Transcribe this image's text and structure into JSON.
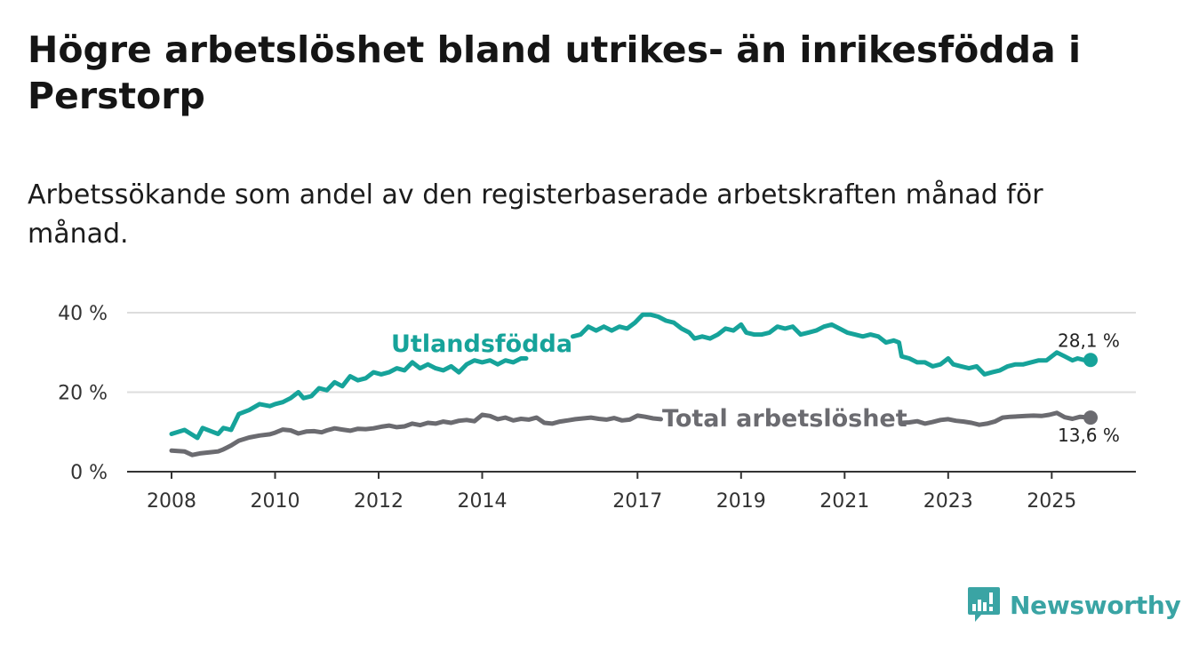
{
  "header": {
    "title": "Högre arbetslöshet bland utrikes- än inrikesfödda i Perstorp",
    "subtitle": "Arbetssökande som andel av den registerbaserade arbetskraften månad för månad."
  },
  "brand": {
    "name": "Newsworthy",
    "color": "#3aa4a4",
    "icon": "newsworthy-logo-icon"
  },
  "chart_data": {
    "type": "line",
    "title": "Högre arbetslöshet bland utrikes- än inrikesfödda i Perstorp",
    "subtitle": "Arbetssökande som andel av den registerbaserade arbetskraften månad för månad.",
    "xlabel": "",
    "ylabel": "",
    "xlim": [
      2008,
      2025.75
    ],
    "ylim": [
      0,
      40
    ],
    "x_ticks": [
      2008,
      2010,
      2012,
      2014,
      2017,
      2019,
      2021,
      2023,
      2025
    ],
    "x_tick_labels": [
      "2008",
      "2010",
      "2012",
      "2014",
      "2017",
      "2019",
      "2021",
      "2023",
      "2025"
    ],
    "y_ticks": [
      0,
      20,
      40
    ],
    "y_tick_labels": [
      "0 %",
      "20 %",
      "40 %"
    ],
    "grid": "horizontal",
    "series": [
      {
        "name": "Utlandsfödda",
        "color": "#16a39a",
        "end_label": "28,1 %",
        "segments": [
          [
            [
              2008.0,
              9.5
            ],
            [
              2008.25,
              10.5
            ],
            [
              2008.5,
              8.5
            ],
            [
              2008.6,
              11
            ],
            [
              2008.8,
              10
            ],
            [
              2008.9,
              9.5
            ],
            [
              2009.0,
              11
            ],
            [
              2009.15,
              10.5
            ],
            [
              2009.3,
              14.5
            ],
            [
              2009.5,
              15.5
            ],
            [
              2009.7,
              17
            ],
            [
              2009.9,
              16.5
            ],
            [
              2010.0,
              17
            ],
            [
              2010.15,
              17.5
            ],
            [
              2010.3,
              18.5
            ],
            [
              2010.45,
              20
            ],
            [
              2010.55,
              18.5
            ],
            [
              2010.7,
              19
            ],
            [
              2010.85,
              21
            ],
            [
              2011.0,
              20.5
            ],
            [
              2011.15,
              22.5
            ],
            [
              2011.3,
              21.5
            ],
            [
              2011.45,
              24
            ],
            [
              2011.6,
              23
            ],
            [
              2011.75,
              23.5
            ],
            [
              2011.9,
              25
            ],
            [
              2012.05,
              24.5
            ],
            [
              2012.2,
              25
            ],
            [
              2012.35,
              26
            ],
            [
              2012.5,
              25.5
            ],
            [
              2012.65,
              27.5
            ],
            [
              2012.8,
              26
            ],
            [
              2012.95,
              27
            ],
            [
              2013.1,
              26
            ],
            [
              2013.25,
              25.5
            ],
            [
              2013.4,
              26.5
            ],
            [
              2013.55,
              25
            ],
            [
              2013.7,
              27
            ],
            [
              2013.85,
              28
            ],
            [
              2014.0,
              27.5
            ],
            [
              2014.15,
              28
            ],
            [
              2014.3,
              27
            ],
            [
              2014.45,
              28
            ],
            [
              2014.6,
              27.5
            ],
            [
              2014.75,
              28.5
            ],
            [
              2014.85,
              28.5
            ]
          ],
          [
            [
              2015.75,
              34
            ],
            [
              2015.9,
              34.5
            ],
            [
              2016.05,
              36.5
            ],
            [
              2016.2,
              35.5
            ],
            [
              2016.35,
              36.5
            ],
            [
              2016.5,
              35.5
            ],
            [
              2016.65,
              36.5
            ],
            [
              2016.8,
              36
            ],
            [
              2016.95,
              37.5
            ],
            [
              2017.1,
              39.5
            ],
            [
              2017.25,
              39.5
            ],
            [
              2017.4,
              39
            ],
            [
              2017.55,
              38
            ],
            [
              2017.7,
              37.5
            ],
            [
              2017.85,
              36
            ],
            [
              2018.0,
              35
            ],
            [
              2018.1,
              33.5
            ],
            [
              2018.25,
              34
            ],
            [
              2018.4,
              33.5
            ],
            [
              2018.55,
              34.5
            ],
            [
              2018.7,
              36
            ],
            [
              2018.85,
              35.5
            ],
            [
              2019.0,
              37
            ],
            [
              2019.1,
              35
            ],
            [
              2019.25,
              34.5
            ],
            [
              2019.4,
              34.5
            ],
            [
              2019.55,
              35
            ],
            [
              2019.7,
              36.5
            ],
            [
              2019.85,
              36
            ],
            [
              2020.0,
              36.5
            ],
            [
              2020.15,
              34.5
            ],
            [
              2020.3,
              35
            ],
            [
              2020.45,
              35.5
            ],
            [
              2020.6,
              36.5
            ],
            [
              2020.75,
              37
            ],
            [
              2020.9,
              36
            ],
            [
              2021.05,
              35
            ],
            [
              2021.2,
              34.5
            ],
            [
              2021.35,
              34
            ],
            [
              2021.5,
              34.5
            ],
            [
              2021.65,
              34
            ],
            [
              2021.8,
              32.5
            ],
            [
              2021.95,
              33
            ],
            [
              2022.05,
              32.5
            ],
            [
              2022.1,
              29
            ],
            [
              2022.25,
              28.5
            ],
            [
              2022.4,
              27.5
            ],
            [
              2022.55,
              27.5
            ],
            [
              2022.7,
              26.5
            ],
            [
              2022.85,
              27
            ],
            [
              2023.0,
              28.5
            ],
            [
              2023.1,
              27
            ],
            [
              2023.25,
              26.5
            ],
            [
              2023.4,
              26
            ],
            [
              2023.55,
              26.5
            ],
            [
              2023.7,
              24.5
            ],
            [
              2023.85,
              25
            ],
            [
              2024.0,
              25.5
            ],
            [
              2024.15,
              26.5
            ],
            [
              2024.3,
              27
            ],
            [
              2024.45,
              27
            ],
            [
              2024.6,
              27.5
            ],
            [
              2024.75,
              28
            ],
            [
              2024.9,
              28
            ],
            [
              2025.0,
              29
            ],
            [
              2025.1,
              30
            ],
            [
              2025.25,
              29
            ],
            [
              2025.4,
              28
            ],
            [
              2025.5,
              28.5
            ],
            [
              2025.65,
              28
            ],
            [
              2025.75,
              28.1
            ]
          ]
        ]
      },
      {
        "name": "Total arbetslöshet",
        "color": "#6b6b70",
        "end_label": "13,6 %",
        "segments": [
          [
            [
              2008.0,
              5.3
            ],
            [
              2008.25,
              5.1
            ],
            [
              2008.4,
              4.2
            ],
            [
              2008.55,
              4.6
            ],
            [
              2008.75,
              4.9
            ],
            [
              2008.9,
              5.1
            ],
            [
              2009.0,
              5.6
            ],
            [
              2009.15,
              6.6
            ],
            [
              2009.3,
              7.8
            ],
            [
              2009.5,
              8.6
            ],
            [
              2009.7,
              9.1
            ],
            [
              2009.9,
              9.4
            ],
            [
              2010.0,
              9.8
            ],
            [
              2010.15,
              10.6
            ],
            [
              2010.3,
              10.4
            ],
            [
              2010.45,
              9.6
            ],
            [
              2010.6,
              10.1
            ],
            [
              2010.75,
              10.2
            ],
            [
              2010.9,
              9.9
            ],
            [
              2011.0,
              10.4
            ],
            [
              2011.15,
              10.9
            ],
            [
              2011.3,
              10.6
            ],
            [
              2011.45,
              10.3
            ],
            [
              2011.6,
              10.8
            ],
            [
              2011.75,
              10.7
            ],
            [
              2011.9,
              10.9
            ],
            [
              2012.05,
              11.3
            ],
            [
              2012.2,
              11.6
            ],
            [
              2012.35,
              11.2
            ],
            [
              2012.5,
              11.4
            ],
            [
              2012.65,
              12.1
            ],
            [
              2012.8,
              11.7
            ],
            [
              2012.95,
              12.3
            ],
            [
              2013.1,
              12.1
            ],
            [
              2013.25,
              12.6
            ],
            [
              2013.4,
              12.3
            ],
            [
              2013.55,
              12.8
            ],
            [
              2013.7,
              13.0
            ],
            [
              2013.85,
              12.7
            ],
            [
              2014.0,
              14.3
            ],
            [
              2014.15,
              14.0
            ],
            [
              2014.3,
              13.2
            ],
            [
              2014.45,
              13.6
            ],
            [
              2014.6,
              12.9
            ],
            [
              2014.75,
              13.3
            ],
            [
              2014.9,
              13.1
            ],
            [
              2015.05,
              13.6
            ],
            [
              2015.2,
              12.3
            ],
            [
              2015.35,
              12.1
            ],
            [
              2015.5,
              12.6
            ],
            [
              2015.65,
              12.9
            ],
            [
              2015.8,
              13.2
            ],
            [
              2015.95,
              13.4
            ],
            [
              2016.1,
              13.6
            ],
            [
              2016.25,
              13.3
            ],
            [
              2016.4,
              13.1
            ],
            [
              2016.55,
              13.5
            ],
            [
              2016.7,
              12.9
            ],
            [
              2016.85,
              13.1
            ],
            [
              2017.0,
              14.1
            ],
            [
              2017.15,
              13.8
            ],
            [
              2017.3,
              13.4
            ],
            [
              2017.45,
              13.2
            ]
          ],
          [
            [
              2022.1,
              12.3
            ],
            [
              2022.25,
              12.4
            ],
            [
              2022.4,
              12.7
            ],
            [
              2022.55,
              12.1
            ],
            [
              2022.7,
              12.5
            ],
            [
              2022.85,
              13.0
            ],
            [
              2023.0,
              13.2
            ],
            [
              2023.15,
              12.8
            ],
            [
              2023.3,
              12.6
            ],
            [
              2023.45,
              12.3
            ],
            [
              2023.6,
              11.8
            ],
            [
              2023.75,
              12.1
            ],
            [
              2023.9,
              12.6
            ],
            [
              2024.05,
              13.6
            ],
            [
              2024.2,
              13.8
            ],
            [
              2024.35,
              13.9
            ],
            [
              2024.5,
              14.0
            ],
            [
              2024.65,
              14.1
            ],
            [
              2024.8,
              14.0
            ],
            [
              2024.95,
              14.3
            ],
            [
              2025.1,
              14.8
            ],
            [
              2025.25,
              13.7
            ],
            [
              2025.4,
              13.3
            ],
            [
              2025.55,
              13.8
            ],
            [
              2025.75,
              13.6
            ]
          ]
        ]
      }
    ]
  }
}
